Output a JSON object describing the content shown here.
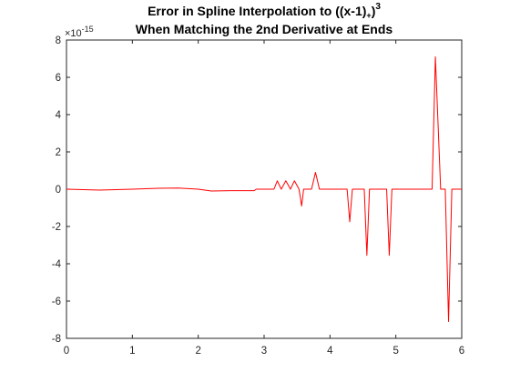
{
  "chart_data": {
    "type": "line",
    "title_line1": "Error in Spline Interpolation to ((x-1)",
    "title_line1_sub": "+",
    "title_line1_close": ")",
    "title_line1_sup": "3",
    "title_line2": "When Matching the 2nd Derivative at Ends",
    "xlabel": "",
    "ylabel": "",
    "xlim": [
      0,
      6
    ],
    "ylim": [
      -8,
      8
    ],
    "xticks": [
      "0",
      "1",
      "2",
      "3",
      "4",
      "5",
      "6"
    ],
    "yticks": [
      "-8",
      "-6",
      "-4",
      "-2",
      "0",
      "2",
      "4",
      "6",
      "8"
    ],
    "yscale_multiplier_base": "×10",
    "yscale_multiplier_exp": "-15",
    "grid": false,
    "series": [
      {
        "color": "#ff0000",
        "x": [
          0,
          0.5,
          1.0,
          1.4,
          1.7,
          2.0,
          2.2,
          2.5,
          2.85,
          2.88,
          3.1,
          3.15,
          3.2,
          3.26,
          3.33,
          3.4,
          3.46,
          3.53,
          3.57,
          3.6,
          3.62,
          3.66,
          3.72,
          3.78,
          3.84,
          3.9,
          3.96,
          4.02,
          4.08,
          4.14,
          4.2,
          4.26,
          4.3,
          4.34,
          4.38,
          4.46,
          4.52,
          4.56,
          4.6,
          4.65,
          4.8,
          4.86,
          4.9,
          4.94,
          4.98,
          5.3,
          5.55,
          5.6,
          5.68,
          5.75,
          5.8,
          5.85,
          5.9,
          6.0
        ],
        "y": [
          0,
          -0.05,
          0,
          0.05,
          0.06,
          0,
          -0.1,
          -0.08,
          -0.08,
          0,
          0,
          0,
          0.45,
          0,
          0.45,
          0,
          0.45,
          0,
          -0.9,
          0,
          0,
          0,
          0,
          0.9,
          0,
          0,
          0,
          0,
          0,
          0,
          0,
          0,
          -1.75,
          0,
          0,
          0,
          0,
          -3.55,
          0,
          0,
          0,
          0,
          -3.55,
          0,
          0,
          0,
          0,
          7.1,
          0,
          0,
          -7.1,
          0,
          0,
          0
        ]
      }
    ]
  }
}
